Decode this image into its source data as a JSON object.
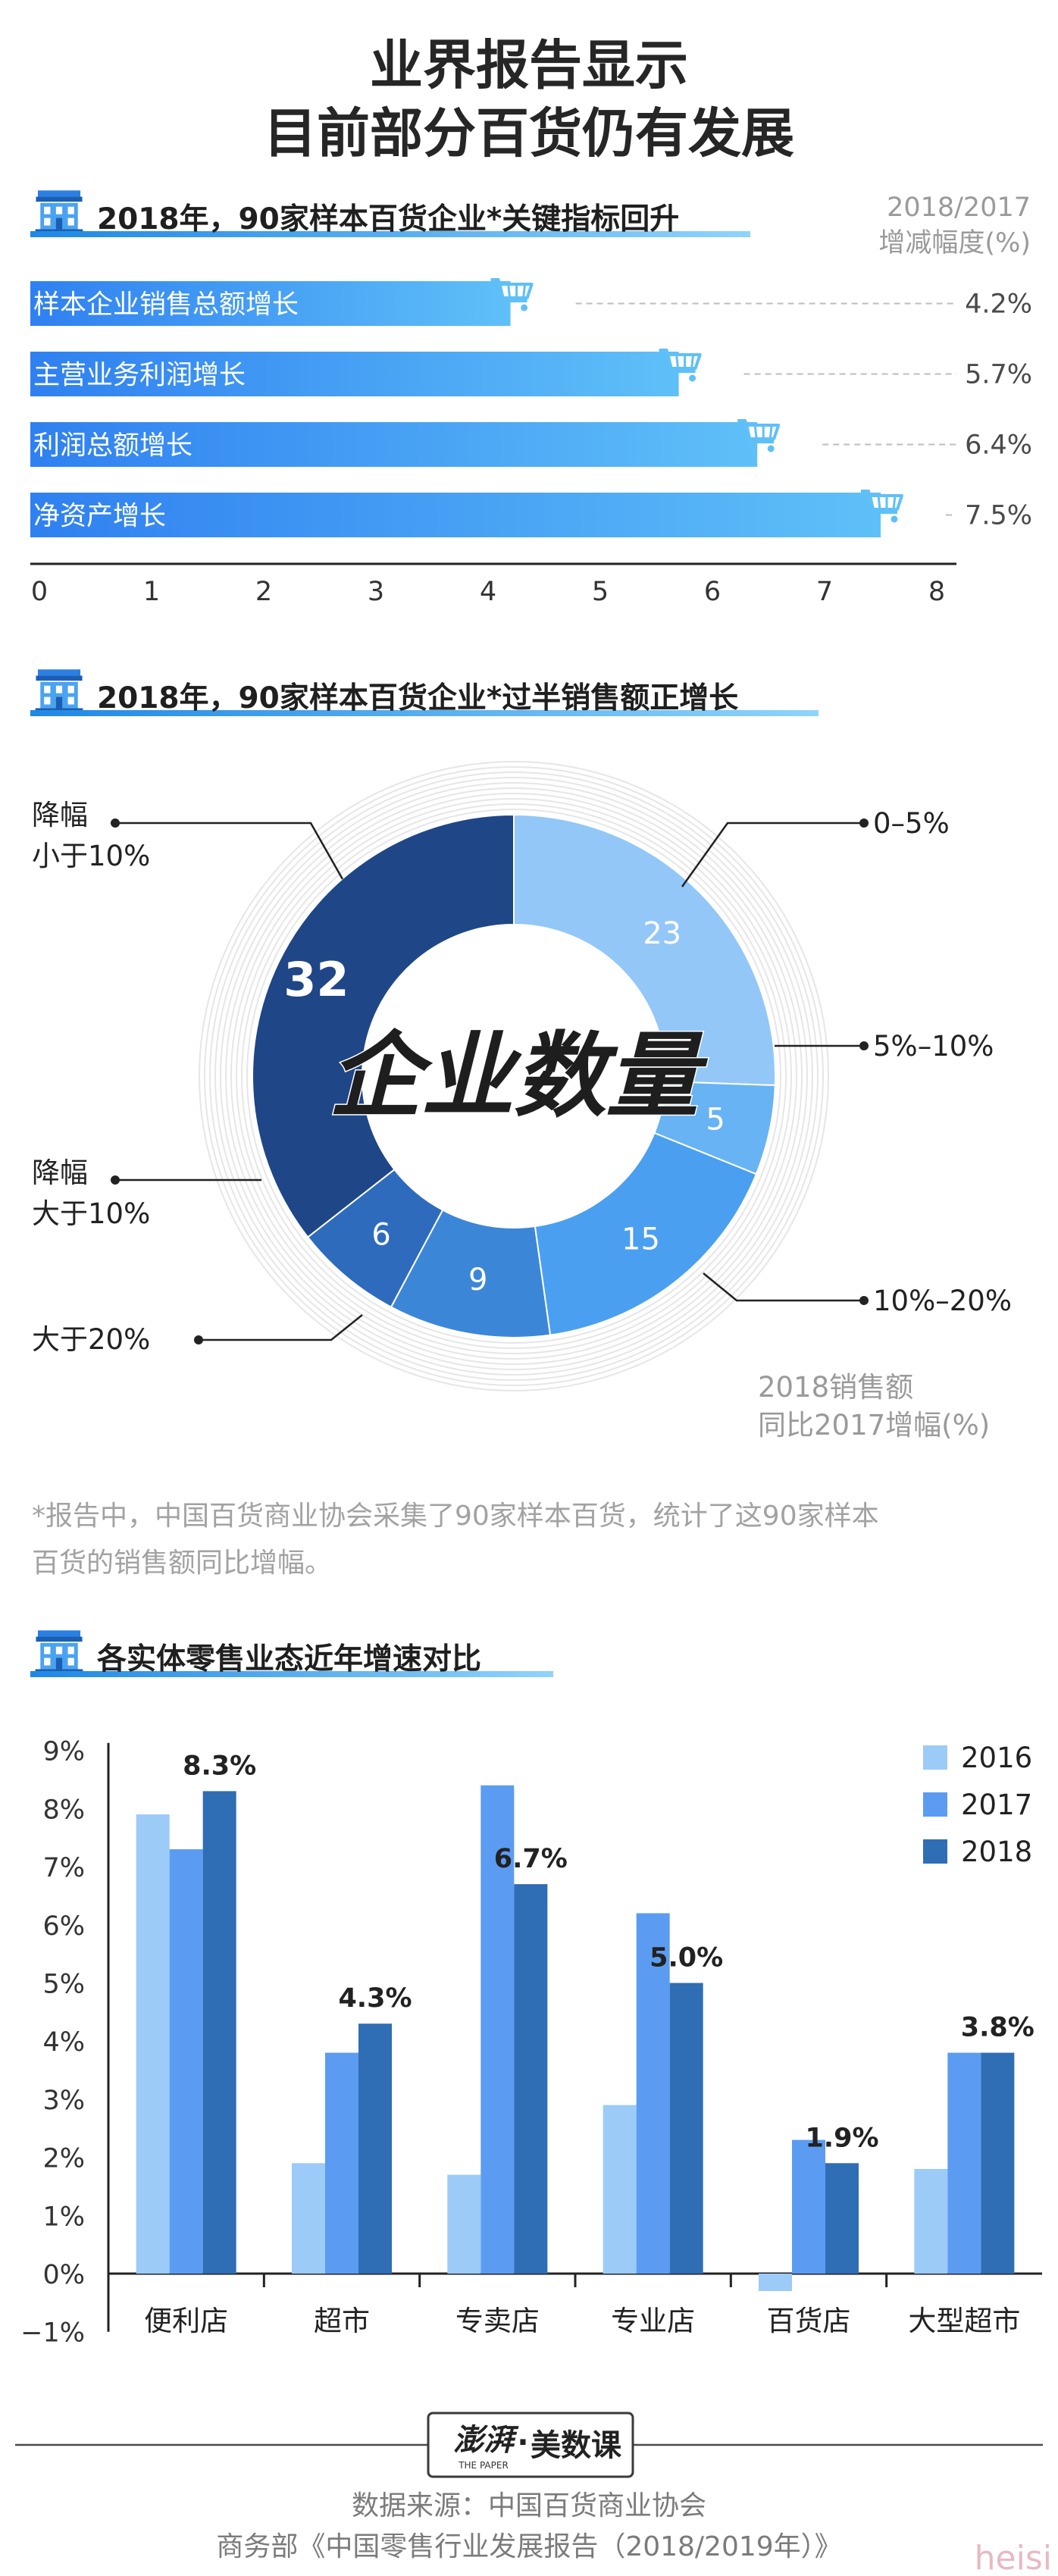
{
  "title": {
    "line1": "业界报告显示",
    "line2": "目前部分百货仍有发展"
  },
  "section1": {
    "title": "2018年，90家样本百货企业*关键指标回升",
    "unit_line1": "2018/2017",
    "unit_line2": "增减幅度(%)"
  },
  "section2": {
    "title": "2018年，90家样本百货企业*过半销售额正增长",
    "center": "企业数量",
    "unit_line1": "2018销售额",
    "unit_line2": "同比2017增幅(%)"
  },
  "note": {
    "line1": "*报告中，中国百货商业协会采集了90家样本百货，统计了这90家样本",
    "line2": "百货的销售额同比增幅。"
  },
  "section3": {
    "title": "各实体零售业态近年增速对比"
  },
  "logo": {
    "brand": "澎湃",
    "sub": "THE PAPER",
    "product": "美数课"
  },
  "source": {
    "line1": "数据来源：中国百货商业协会",
    "line2": "商务部《中国零售行业发展报告（2018/2019年）》"
  },
  "watermark": "heisi",
  "chart_data": [
    {
      "type": "bar",
      "orientation": "horizontal",
      "categories": [
        "样本企业销售总额增长",
        "主营业务利润增长",
        "利润总额增长",
        "净资产增长"
      ],
      "values": [
        4.2,
        5.7,
        6.4,
        7.5
      ],
      "value_labels": [
        "4.2%",
        "5.7%",
        "6.4%",
        "7.5%"
      ],
      "xlim": [
        0,
        8
      ],
      "ticks": [
        "0",
        "1",
        "2",
        "3",
        "4",
        "5",
        "6",
        "7",
        "8"
      ],
      "color_start": "#2f80f0",
      "color_end": "#5fc0f8"
    },
    {
      "type": "pie",
      "style": "donut",
      "slices": [
        {
          "label": "0–5%",
          "value": 23,
          "color": "#93c7f8"
        },
        {
          "label": "5%–10%",
          "value": 5,
          "color": "#67b3f4"
        },
        {
          "label": "10%–20%",
          "value": 15,
          "color": "#4a9ff0"
        },
        {
          "label": "大于20%",
          "value": 9,
          "color": "#3c86d8"
        },
        {
          "label": "降幅大于10%",
          "value": 6,
          "color": "#2e6bbd"
        },
        {
          "label": "降幅小于10%",
          "value": 32,
          "color": "#1f4687"
        }
      ],
      "callout_labels": {
        "decline_small_1": "降幅",
        "decline_small_2": "小于10%",
        "decline_big_1": "降幅",
        "decline_big_2": "大于10%",
        "over20": "大于20%",
        "r0_5": "0–5%",
        "r5_10": "5%–10%",
        "r10_20": "10%–20%"
      }
    },
    {
      "type": "bar",
      "categories": [
        "便利店",
        "超市",
        "专卖店",
        "专业店",
        "百货店",
        "大型超市"
      ],
      "series": [
        {
          "name": "2016",
          "values": [
            7.9,
            1.9,
            1.7,
            2.9,
            -0.3,
            1.8
          ],
          "color": "#9ccbf7"
        },
        {
          "name": "2017",
          "values": [
            7.3,
            3.8,
            8.4,
            6.2,
            2.3,
            3.8
          ],
          "color": "#5b9cf2"
        },
        {
          "name": "2018",
          "values": [
            8.3,
            4.3,
            6.7,
            5.0,
            1.9,
            3.8
          ],
          "color": "#2f6db5"
        }
      ],
      "value_labels": [
        "8.3%",
        "4.3%",
        "6.7%",
        "5.0%",
        "1.9%",
        "3.8%"
      ],
      "ylim": [
        -1,
        9
      ],
      "yticks": [
        "−1%",
        "0%",
        "1%",
        "2%",
        "3%",
        "4%",
        "5%",
        "6%",
        "7%",
        "8%",
        "9%"
      ],
      "legend": "top-right"
    }
  ]
}
